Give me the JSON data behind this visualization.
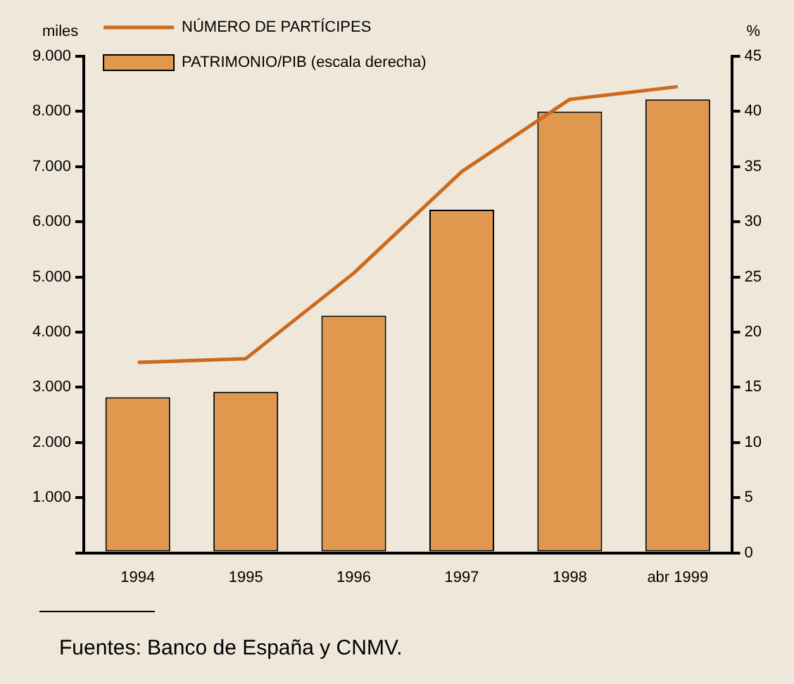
{
  "chart_data": {
    "type": "bar",
    "categories": [
      "1994",
      "1995",
      "1996",
      "1997",
      "1998",
      "abr 1999"
    ],
    "series": [
      {
        "name": "PATRIMONIO/PIB (escala derecha)",
        "type": "bar",
        "axis": "y2",
        "color": "#e0984f",
        "values": [
          14.1,
          14.6,
          21.5,
          31.1,
          40,
          41.1
        ]
      },
      {
        "name": "NÚMERO DE PARTÍCIPES",
        "type": "line",
        "axis": "y",
        "color": "#cc6a1e",
        "values": [
          3450,
          3520,
          5070,
          6910,
          8220,
          8450
        ]
      }
    ],
    "ylabel": "miles",
    "y2label": "%",
    "ylim": [
      0,
      9000
    ],
    "yticks": [
      {
        "value": 0,
        "label": null
      },
      {
        "value": 1000,
        "label": "1.000"
      },
      {
        "value": 2000,
        "label": "2.000"
      },
      {
        "value": 3000,
        "label": "3.000"
      },
      {
        "value": 4000,
        "label": "4.000"
      },
      {
        "value": 5000,
        "label": "5.000"
      },
      {
        "value": 6000,
        "label": "6.000"
      },
      {
        "value": 7000,
        "label": "7.000"
      },
      {
        "value": 8000,
        "label": "8.000"
      },
      {
        "value": 9000,
        "label": "9.000"
      }
    ],
    "y2lim": [
      0,
      45
    ],
    "y2ticks": [
      0,
      5,
      10,
      15,
      20,
      25,
      30,
      35,
      40,
      45
    ],
    "grid": false,
    "legend": "top left",
    "marker": "none",
    "annotations": [
      "Fuentes:  Banco de España y CNMV."
    ]
  }
}
